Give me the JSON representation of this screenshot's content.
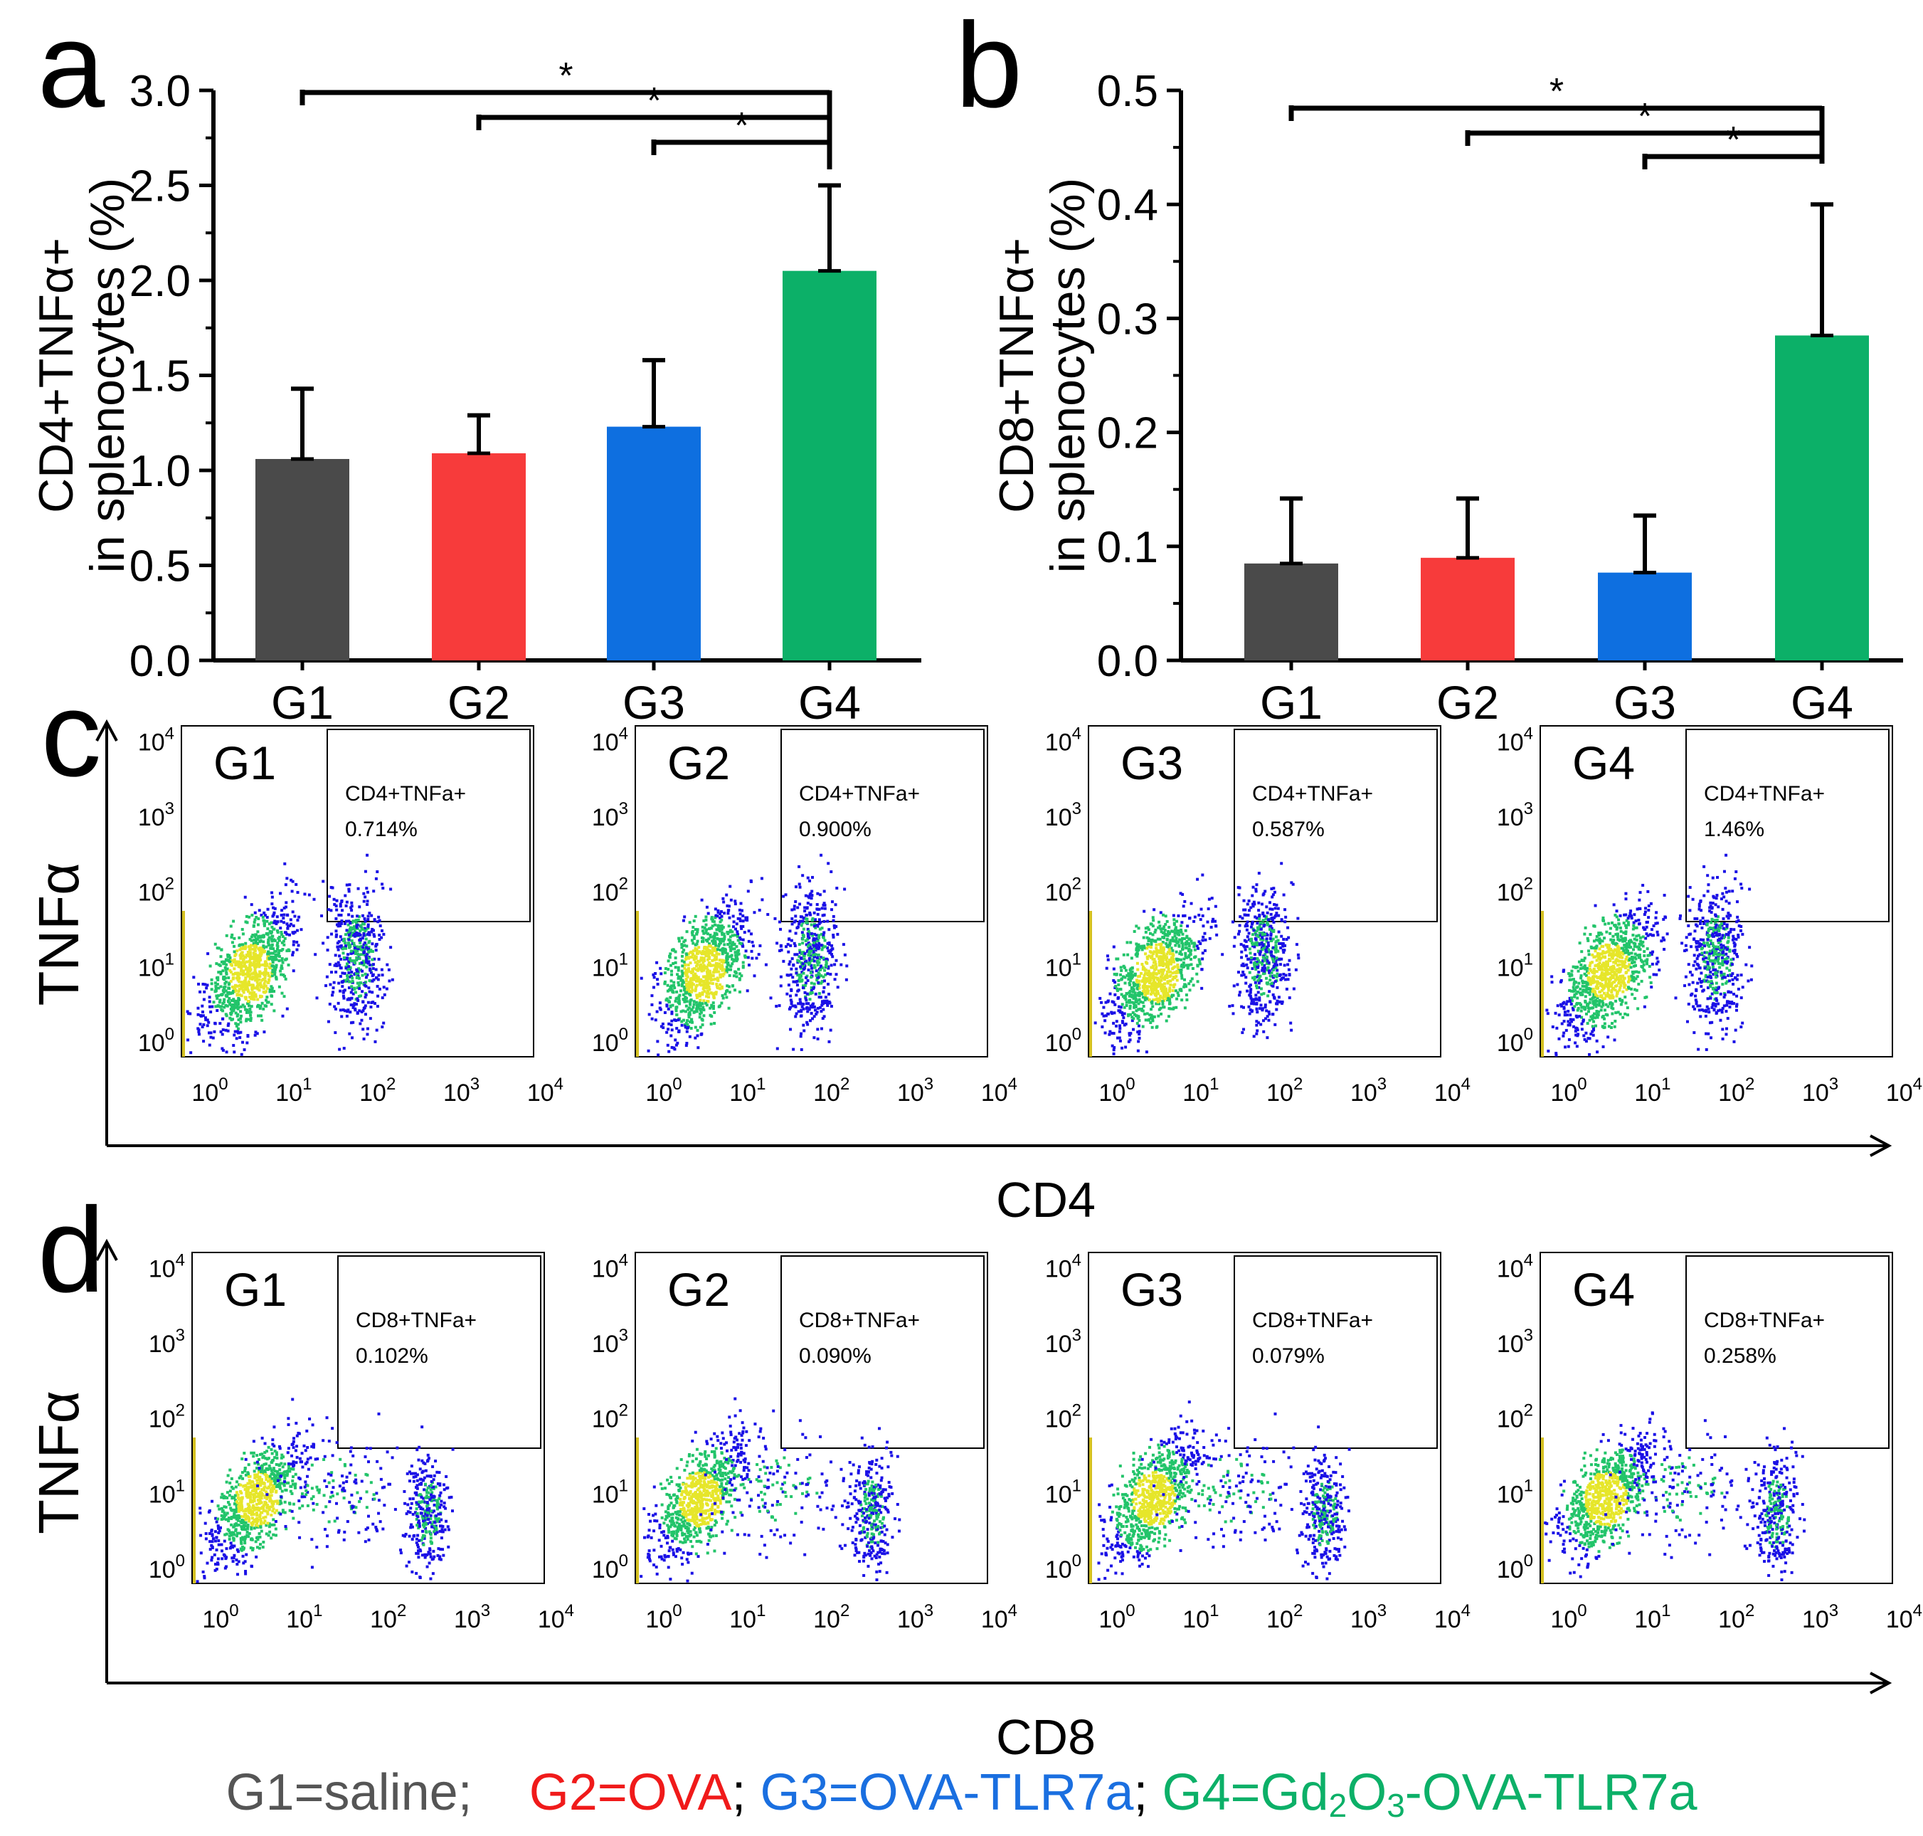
{
  "colors": {
    "G1": "#4a4a4a",
    "G2": "#f73b3b",
    "G3": "#0e6fe0",
    "G4": "#0cb068",
    "dot_blue": "#1a10e6",
    "dot_green": "#22c46a",
    "dot_yellow": "#e6e62a",
    "axis": "#000000"
  },
  "chart_data": [
    {
      "panel": "a",
      "type": "bar",
      "ylabel_line1": "CD4+TNFα+",
      "ylabel_line2": "in splenocytes (%)",
      "categories": [
        "G1",
        "G2",
        "G3",
        "G4"
      ],
      "values": [
        1.06,
        1.09,
        1.23,
        2.05
      ],
      "errors": [
        0.37,
        0.2,
        0.35,
        0.45
      ],
      "ylim": [
        0,
        3.0
      ],
      "yticks": [
        "0.0",
        "0.5",
        "1.0",
        "1.5",
        "2.0",
        "2.5",
        "3.0"
      ],
      "significance": [
        {
          "from": "G1",
          "to": "G4",
          "label": "*"
        },
        {
          "from": "G2",
          "to": "G4",
          "label": "*"
        },
        {
          "from": "G3",
          "to": "G4",
          "label": "*"
        }
      ]
    },
    {
      "panel": "b",
      "type": "bar",
      "ylabel_line1": "CD8+TNFα+",
      "ylabel_line2": "in splenocytes (%)",
      "categories": [
        "G1",
        "G2",
        "G3",
        "G4"
      ],
      "values": [
        0.085,
        0.09,
        0.077,
        0.285
      ],
      "errors": [
        0.057,
        0.052,
        0.05,
        0.115
      ],
      "ylim": [
        0,
        0.5
      ],
      "yticks": [
        "0.0",
        "0.1",
        "0.2",
        "0.3",
        "0.4",
        "0.5"
      ],
      "significance": [
        {
          "from": "G1",
          "to": "G4",
          "label": "*"
        },
        {
          "from": "G2",
          "to": "G4",
          "label": "*"
        },
        {
          "from": "G3",
          "to": "G4",
          "label": "*"
        }
      ]
    },
    {
      "panel": "c",
      "type": "scatter",
      "xlabel": "CD4",
      "ylabel": "TNFα",
      "gate_label": "CD4+TNFa+",
      "plots": [
        {
          "group": "G1",
          "gate_value": "0.714%"
        },
        {
          "group": "G2",
          "gate_value": "0.900%"
        },
        {
          "group": "G3",
          "gate_value": "0.587%"
        },
        {
          "group": "G4",
          "gate_value": "1.46%"
        }
      ]
    },
    {
      "panel": "d",
      "type": "scatter",
      "xlabel": "CD8",
      "ylabel": "TNFα",
      "gate_label": "CD8+TNFa+",
      "plots": [
        {
          "group": "G1",
          "gate_value": "0.102%"
        },
        {
          "group": "G2",
          "gate_value": "0.090%"
        },
        {
          "group": "G3",
          "gate_value": "0.079%"
        },
        {
          "group": "G4",
          "gate_value": "0.258%"
        }
      ]
    }
  ],
  "log_ticks": {
    "base": "10",
    "exponents": [
      "0",
      "1",
      "2",
      "3",
      "4"
    ]
  },
  "legend": {
    "g1": "G1=saline;",
    "g2": "G2=OVA",
    "sep1": ";",
    "g3": "G3=OVA-TLR7a",
    "sep2": ";",
    "g4_pre": "G4=Gd",
    "g4_sub1": "2",
    "g4_mid": "O",
    "g4_sub2": "3",
    "g4_post": "-OVA-TLR7a"
  }
}
